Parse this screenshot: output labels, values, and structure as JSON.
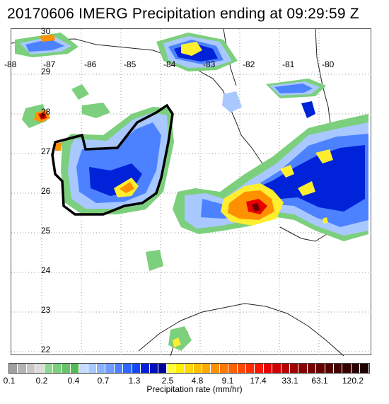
{
  "title": "20170606 IMERG Precipitation ending at 09:29:59 Z",
  "lon_labels": [
    "-88",
    "-87",
    "-86",
    "-85",
    "-84",
    "-83",
    "-82",
    "-81",
    "-80"
  ],
  "lat_labels": [
    "30",
    "29",
    "28",
    "27",
    "26",
    "25",
    "24",
    "23",
    "22"
  ],
  "colorbar": {
    "tick_labels": [
      "0.1",
      "0.2",
      "0.4",
      "0.7",
      "1.3",
      "2.5",
      "4.8",
      "9.1",
      "17.4",
      "33.1",
      "63.1",
      "120.2"
    ],
    "label": "Precipitation rate (mm/hr)",
    "colors": [
      "#a0a0a0",
      "#b4b4b4",
      "#c8c8c8",
      "#dcdcdc",
      "#8fd88f",
      "#7ccf7c",
      "#68c468",
      "#55b955",
      "#c6dcff",
      "#a8c8ff",
      "#8ab2ff",
      "#6e9cff",
      "#4c82ff",
      "#2f66ff",
      "#1448f0",
      "#0022d8",
      "#0010c0",
      "#000098",
      "#ffff40",
      "#fff000",
      "#ffd800",
      "#ffc000",
      "#ffa800",
      "#ff9000",
      "#ff7800",
      "#ff6000",
      "#ff4800",
      "#ff3000",
      "#f81800",
      "#e80000",
      "#d00000",
      "#b80000",
      "#a00000",
      "#8a0000",
      "#760000",
      "#640000",
      "#540000",
      "#440000",
      "#360000",
      "#2a0000",
      "#200000"
    ]
  },
  "legend_colors": {
    "green": "#7ccf7c",
    "lightblue": "#a8c8ff",
    "blue": "#1448f0",
    "darkblue": "#000098",
    "yellow": "#ffee30",
    "orange": "#ff9000",
    "red": "#e80000",
    "darkred": "#6a0000"
  }
}
